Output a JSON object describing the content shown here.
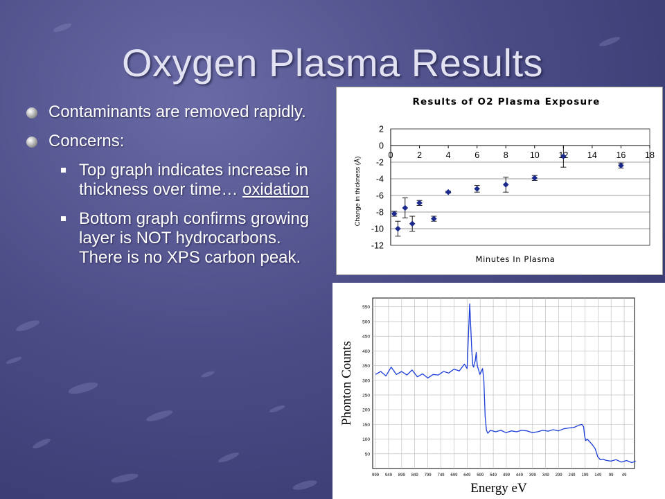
{
  "slide": {
    "title": "Oxygen Plasma Results",
    "bullets": [
      {
        "text": "Contaminants are removed rapidly."
      },
      {
        "text": "Concerns:"
      }
    ],
    "sub_bullets": [
      {
        "pre": "Top graph indicates increase in thickness over time… ",
        "underlined": "oxidation"
      },
      {
        "pre": "Bottom graph confirms growing layer is NOT hydrocarbons. There is no XPS carbon peak.",
        "underlined": ""
      }
    ]
  },
  "chart_data": [
    {
      "type": "scatter",
      "title": "Results of O2 Plasma Exposure",
      "xlabel": "Minutes In Plasma",
      "ylabel": "Change in thickness (Å)",
      "xlim": [
        0,
        18
      ],
      "ylim": [
        -12,
        2
      ],
      "x_ticks": [
        "0",
        "2",
        "4",
        "6",
        "8",
        "10",
        "12",
        "14",
        "16",
        "18"
      ],
      "y_ticks": [
        "2",
        "0",
        "-2",
        "-4",
        "-6",
        "-8",
        "-10",
        "-12"
      ],
      "grid": true,
      "series": [
        {
          "x": [
            0.25,
            0.5,
            1,
            1.5,
            2,
            3,
            4,
            6,
            8,
            10,
            12,
            16
          ],
          "y": [
            -8.2,
            -10.0,
            -7.5,
            -9.4,
            -6.9,
            -8.8,
            -5.6,
            -5.2,
            -4.7,
            -3.9,
            -1.3,
            -2.4
          ],
          "err": [
            0.3,
            0.9,
            1.2,
            0.9,
            0.3,
            0.3,
            0.1,
            0.4,
            0.9,
            0.3,
            1.3,
            0.3
          ]
        }
      ],
      "color": "#1c2a8c"
    },
    {
      "type": "line",
      "title": "",
      "xlabel": "Energy eV",
      "ylabel": "Phonton Counts",
      "y_ticks": [
        "550",
        "500",
        "450",
        "400",
        "350",
        "300",
        "250",
        "200",
        "150",
        "100",
        "50"
      ],
      "x_ticks": [
        "999",
        "949",
        "899",
        "849",
        "799",
        "749",
        "699",
        "649",
        "599",
        "549",
        "499",
        "449",
        "399",
        "349",
        "299",
        "249",
        "199",
        "149",
        "99",
        "49"
      ],
      "ylim": [
        0,
        580
      ],
      "grid": true,
      "color": "#1a3cd8",
      "series": [
        {
          "x": [
            999,
            979,
            959,
            939,
            919,
            899,
            879,
            859,
            839,
            819,
            799,
            779,
            759,
            739,
            719,
            699,
            679,
            659,
            649,
            639,
            631,
            627,
            624,
            621,
            618,
            614,
            610,
            600,
            590,
            585,
            580,
            575,
            570,
            560,
            540,
            520,
            500,
            480,
            460,
            440,
            420,
            400,
            380,
            360,
            340,
            320,
            300,
            280,
            260,
            240,
            220,
            210,
            204,
            200,
            196,
            190,
            180,
            170,
            160,
            150,
            140,
            130,
            120,
            100,
            80,
            60,
            40,
            20,
            5
          ],
          "y": [
            320,
            330,
            315,
            345,
            320,
            330,
            318,
            335,
            312,
            322,
            308,
            320,
            318,
            330,
            325,
            338,
            332,
            355,
            340,
            560,
            400,
            350,
            345,
            360,
            365,
            395,
            350,
            320,
            340,
            300,
            175,
            130,
            120,
            130,
            125,
            130,
            122,
            128,
            125,
            130,
            128,
            122,
            125,
            130,
            127,
            132,
            128,
            135,
            138,
            140,
            148,
            150,
            142,
            110,
            95,
            100,
            90,
            80,
            68,
            40,
            30,
            32,
            28,
            25,
            30,
            22,
            27,
            20,
            25
          ]
        }
      ]
    }
  ]
}
